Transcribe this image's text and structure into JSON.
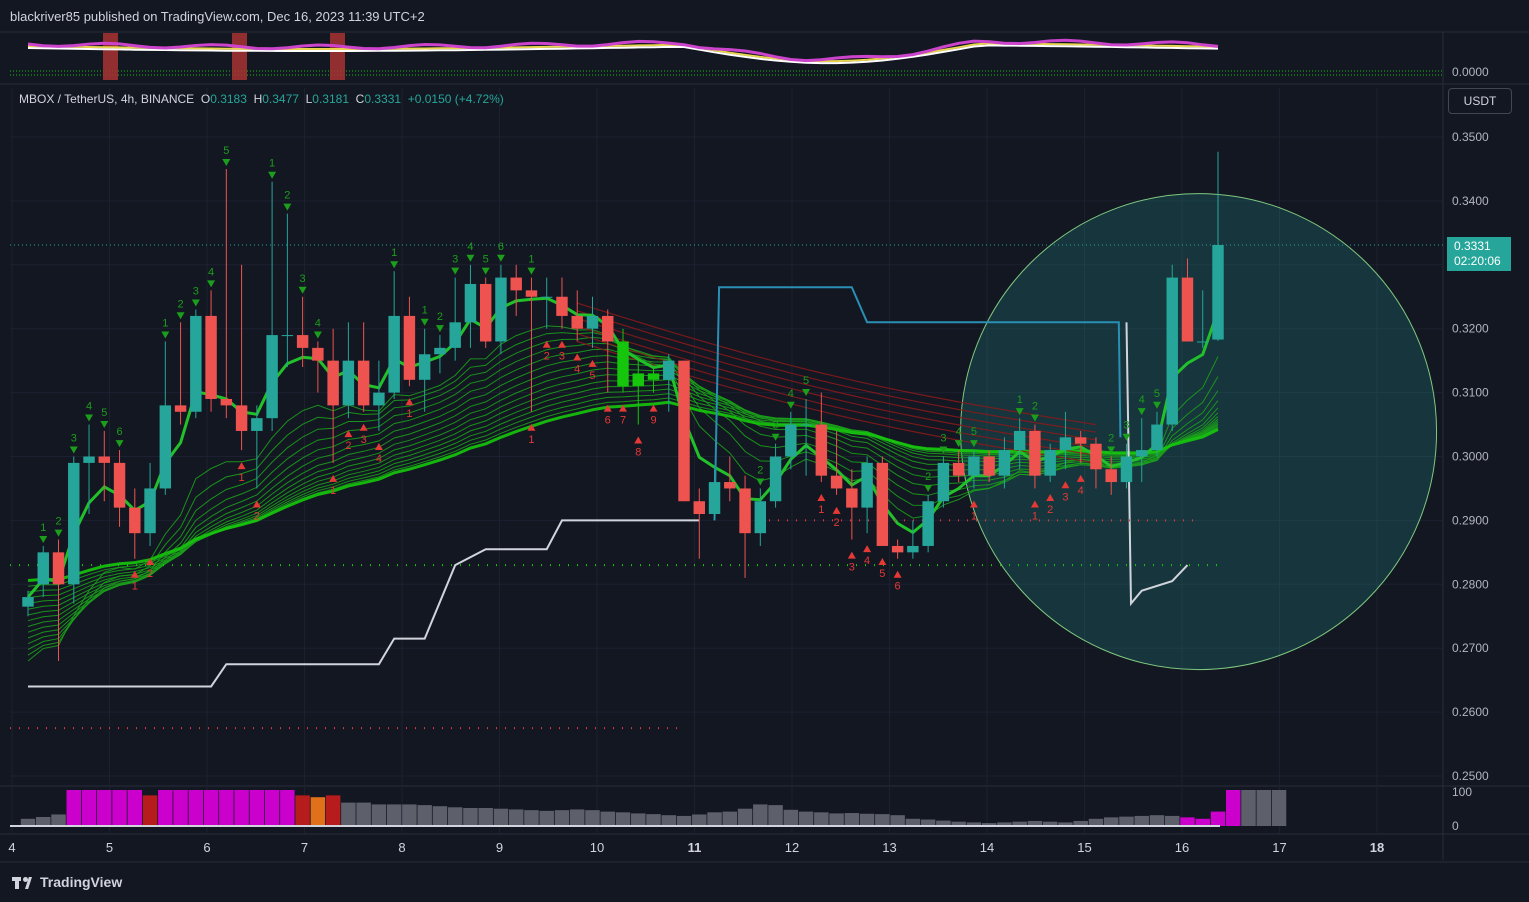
{
  "header": {
    "publisher": "blackriver85 published on TradingView.com, Dec 16, 2023 11:39 UTC+2"
  },
  "legend": {
    "symbol": "MBOX / TetherUS, 4h, BINANCE",
    "o_label": "O",
    "o": "0.3183",
    "h_label": "H",
    "h": "0.3477",
    "l_label": "L",
    "l": "0.3181",
    "c_label": "C",
    "c": "0.3331",
    "change": "+0.0150 (+4.72%)"
  },
  "currency_button": "USDT",
  "last_price": {
    "value": "0.3331",
    "countdown": "02:20:06"
  },
  "footer": {
    "brand": "TradingView"
  },
  "colors": {
    "up": "#26a69a",
    "down": "#ef5350",
    "ribbon_green": "#16c60c",
    "ribbon_red": "#b71c1c",
    "magenta": "#cc00cc",
    "bg": "#131722"
  },
  "chart_data": {
    "type": "candlestick",
    "timeframe": "4h",
    "y_axis_ticks": [
      "0.3500",
      "0.3400",
      "0.3300",
      "0.3200",
      "0.3100",
      "0.3000",
      "0.2900",
      "0.2800",
      "0.2700",
      "0.2600",
      "0.2500"
    ],
    "ylim": [
      0.2475,
      0.355
    ],
    "top_panel_tick": "0.0000",
    "bottom_panel_ticks": [
      "100",
      "0"
    ],
    "x_axis_ticks": [
      {
        "label": "4",
        "day": 4
      },
      {
        "label": "5",
        "day": 5
      },
      {
        "label": "6",
        "day": 6
      },
      {
        "label": "7",
        "day": 7
      },
      {
        "label": "8",
        "day": 8
      },
      {
        "label": "9",
        "day": 9
      },
      {
        "label": "10",
        "day": 10
      },
      {
        "label": "11",
        "day": 11
      },
      {
        "label": "12",
        "day": 12
      },
      {
        "label": "13",
        "day": 13
      },
      {
        "label": "14",
        "day": 14
      },
      {
        "label": "15",
        "day": 15
      },
      {
        "label": "16",
        "day": 16
      },
      {
        "label": "17",
        "day": 17
      },
      {
        "label": "18",
        "day": 18
      }
    ],
    "x_domain": [
      4,
      18.6
    ],
    "candles": [
      [
        0.2765,
        0.279,
        0.275,
        0.278
      ],
      [
        0.28,
        0.286,
        0.278,
        0.285
      ],
      [
        0.285,
        0.287,
        0.268,
        0.28
      ],
      [
        0.28,
        0.3,
        0.277,
        0.299
      ],
      [
        0.299,
        0.305,
        0.291,
        0.3
      ],
      [
        0.3,
        0.304,
        0.293,
        0.299
      ],
      [
        0.299,
        0.301,
        0.289,
        0.292
      ],
      [
        0.292,
        0.295,
        0.284,
        0.288
      ],
      [
        0.288,
        0.299,
        0.286,
        0.295
      ],
      [
        0.295,
        0.318,
        0.294,
        0.308
      ],
      [
        0.308,
        0.321,
        0.305,
        0.307
      ],
      [
        0.307,
        0.323,
        0.306,
        0.322
      ],
      [
        0.322,
        0.326,
        0.307,
        0.309
      ],
      [
        0.309,
        0.345,
        0.306,
        0.308
      ],
      [
        0.308,
        0.33,
        0.301,
        0.304
      ],
      [
        0.304,
        0.308,
        0.295,
        0.306
      ],
      [
        0.306,
        0.343,
        0.304,
        0.319
      ],
      [
        0.319,
        0.338,
        0.314,
        0.319
      ],
      [
        0.319,
        0.325,
        0.314,
        0.317
      ],
      [
        0.317,
        0.318,
        0.31,
        0.315
      ],
      [
        0.315,
        0.32,
        0.299,
        0.308
      ],
      [
        0.308,
        0.321,
        0.306,
        0.315
      ],
      [
        0.315,
        0.321,
        0.307,
        0.308
      ],
      [
        0.308,
        0.315,
        0.304,
        0.31
      ],
      [
        0.31,
        0.329,
        0.309,
        0.322
      ],
      [
        0.322,
        0.325,
        0.311,
        0.312
      ],
      [
        0.312,
        0.32,
        0.307,
        0.316
      ],
      [
        0.316,
        0.319,
        0.313,
        0.317
      ],
      [
        0.317,
        0.328,
        0.315,
        0.321
      ],
      [
        0.321,
        0.33,
        0.317,
        0.327
      ],
      [
        0.327,
        0.328,
        0.317,
        0.318
      ],
      [
        0.318,
        0.33,
        0.316,
        0.328
      ],
      [
        0.328,
        0.33,
        0.322,
        0.326
      ],
      [
        0.326,
        0.328,
        0.307,
        0.325
      ],
      [
        0.325,
        0.328,
        0.32,
        0.325
      ],
      [
        0.325,
        0.328,
        0.32,
        0.322
      ],
      [
        0.322,
        0.326,
        0.318,
        0.32
      ],
      [
        0.32,
        0.325,
        0.317,
        0.322
      ],
      [
        0.322,
        0.323,
        0.31,
        0.318
      ],
      [
        0.318,
        0.32,
        0.31,
        0.311
      ],
      [
        0.311,
        0.315,
        0.305,
        0.313
      ],
      [
        0.313,
        0.314,
        0.31,
        0.312
      ],
      [
        0.312,
        0.316,
        0.307,
        0.315
      ],
      [
        0.315,
        0.315,
        0.293,
        0.293
      ],
      [
        0.293,
        0.295,
        0.284,
        0.291
      ],
      [
        0.291,
        0.298,
        0.29,
        0.296
      ],
      [
        0.296,
        0.3,
        0.293,
        0.295
      ],
      [
        0.295,
        0.297,
        0.281,
        0.288
      ],
      [
        0.288,
        0.295,
        0.286,
        0.293
      ],
      [
        0.293,
        0.302,
        0.292,
        0.3
      ],
      [
        0.3,
        0.307,
        0.298,
        0.305
      ],
      [
        0.305,
        0.309,
        0.297,
        0.305
      ],
      [
        0.305,
        0.31,
        0.296,
        0.297
      ],
      [
        0.297,
        0.304,
        0.294,
        0.295
      ],
      [
        0.295,
        0.298,
        0.287,
        0.292
      ],
      [
        0.292,
        0.3,
        0.288,
        0.299
      ],
      [
        0.299,
        0.3,
        0.286,
        0.286
      ],
      [
        0.286,
        0.287,
        0.284,
        0.285
      ],
      [
        0.285,
        0.29,
        0.284,
        0.286
      ],
      [
        0.286,
        0.294,
        0.285,
        0.293
      ],
      [
        0.293,
        0.3,
        0.292,
        0.299
      ],
      [
        0.299,
        0.301,
        0.296,
        0.297
      ],
      [
        0.297,
        0.301,
        0.295,
        0.3
      ],
      [
        0.3,
        0.301,
        0.296,
        0.297
      ],
      [
        0.297,
        0.303,
        0.295,
        0.301
      ],
      [
        0.301,
        0.306,
        0.298,
        0.304
      ],
      [
        0.304,
        0.305,
        0.295,
        0.297
      ],
      [
        0.297,
        0.302,
        0.296,
        0.301
      ],
      [
        0.301,
        0.307,
        0.298,
        0.303
      ],
      [
        0.303,
        0.304,
        0.299,
        0.302
      ],
      [
        0.302,
        0.303,
        0.295,
        0.298
      ],
      [
        0.298,
        0.3,
        0.294,
        0.296
      ],
      [
        0.296,
        0.302,
        0.295,
        0.3
      ],
      [
        0.3,
        0.306,
        0.296,
        0.301
      ],
      [
        0.301,
        0.307,
        0.3,
        0.305
      ],
      [
        0.305,
        0.33,
        0.304,
        0.328
      ],
      [
        0.328,
        0.331,
        0.318,
        0.318
      ],
      [
        0.318,
        0.326,
        0.317,
        0.318
      ],
      [
        0.3183,
        0.3477,
        0.3181,
        0.3331
      ]
    ],
    "td_sell_marks": [
      {
        "i": 1,
        "n": "1"
      },
      {
        "i": 2,
        "n": "2"
      },
      {
        "i": 3,
        "n": "3"
      },
      {
        "i": 4,
        "n": "4"
      },
      {
        "i": 5,
        "n": "5"
      },
      {
        "i": 6,
        "n": "6"
      },
      {
        "i": 9,
        "n": "1"
      },
      {
        "i": 10,
        "n": "2"
      },
      {
        "i": 11,
        "n": "3"
      },
      {
        "i": 12,
        "n": "4"
      },
      {
        "i": 13,
        "n": "5"
      },
      {
        "i": 16,
        "n": "1"
      },
      {
        "i": 17,
        "n": "2"
      },
      {
        "i": 18,
        "n": "3"
      },
      {
        "i": 19,
        "n": "4"
      },
      {
        "i": 24,
        "n": "1"
      },
      {
        "i": 26,
        "n": "1"
      },
      {
        "i": 27,
        "n": "2"
      },
      {
        "i": 28,
        "n": "3"
      },
      {
        "i": 29,
        "n": "4"
      },
      {
        "i": 30,
        "n": "5"
      },
      {
        "i": 31,
        "n": "6"
      },
      {
        "i": 33,
        "n": "1"
      },
      {
        "i": 48,
        "n": "2"
      },
      {
        "i": 49,
        "n": "3"
      },
      {
        "i": 50,
        "n": "4"
      },
      {
        "i": 51,
        "n": "5"
      },
      {
        "i": 59,
        "n": "2"
      },
      {
        "i": 60,
        "n": "3"
      },
      {
        "i": 61,
        "n": "4"
      },
      {
        "i": 62,
        "n": "5"
      },
      {
        "i": 65,
        "n": "1"
      },
      {
        "i": 66,
        "n": "2"
      },
      {
        "i": 71,
        "n": "2"
      },
      {
        "i": 72,
        "n": "3"
      },
      {
        "i": 73,
        "n": "4"
      },
      {
        "i": 74,
        "n": "5"
      }
    ],
    "td_buy_marks": [
      {
        "i": 7,
        "n": "1"
      },
      {
        "i": 8,
        "n": "2"
      },
      {
        "i": 14,
        "n": "1"
      },
      {
        "i": 15,
        "n": "2"
      },
      {
        "i": 20,
        "n": "1"
      },
      {
        "i": 21,
        "n": "2"
      },
      {
        "i": 22,
        "n": "3"
      },
      {
        "i": 23,
        "n": "4"
      },
      {
        "i": 25,
        "n": "1"
      },
      {
        "i": 33,
        "n": "1"
      },
      {
        "i": 34,
        "n": "2"
      },
      {
        "i": 35,
        "n": "3"
      },
      {
        "i": 36,
        "n": "4"
      },
      {
        "i": 37,
        "n": "5"
      },
      {
        "i": 38,
        "n": "6"
      },
      {
        "i": 39,
        "n": "7"
      },
      {
        "i": 40,
        "n": "8"
      },
      {
        "i": 41,
        "n": "9"
      },
      {
        "i": 52,
        "n": "1"
      },
      {
        "i": 53,
        "n": "2"
      },
      {
        "i": 54,
        "n": "3"
      },
      {
        "i": 55,
        "n": "4"
      },
      {
        "i": 56,
        "n": "5"
      },
      {
        "i": 57,
        "n": "6"
      },
      {
        "i": 62,
        "n": "1"
      },
      {
        "i": 66,
        "n": "1"
      },
      {
        "i": 67,
        "n": "2"
      },
      {
        "i": 68,
        "n": "3"
      },
      {
        "i": 69,
        "n": "4"
      }
    ],
    "histogram_colors": [
      "gray",
      "gray",
      "gray",
      "magenta",
      "magenta",
      "magenta",
      "magenta",
      "magenta",
      "darkred",
      "magenta",
      "magenta",
      "magenta",
      "magenta",
      "magenta",
      "magenta",
      "magenta",
      "magenta",
      "magenta",
      "red",
      "orange",
      "red",
      "gray",
      "gray",
      "gray",
      "gray",
      "gray",
      "gray",
      "gray",
      "gray",
      "gray",
      "gray",
      "gray",
      "gray",
      "gray",
      "gray",
      "gray",
      "gray",
      "gray",
      "gray",
      "gray",
      "gray",
      "gray",
      "gray",
      "gray",
      "gray",
      "gray",
      "gray",
      "gray",
      "gray",
      "gray",
      "gray",
      "gray",
      "gray",
      "gray",
      "gray",
      "gray",
      "gray",
      "gray",
      "gray",
      "gray",
      "gray",
      "gray",
      "gray",
      "gray",
      "gray",
      "gray",
      "gray",
      "gray",
      "gray",
      "gray",
      "gray",
      "gray",
      "gray",
      "gray",
      "gray",
      "gray",
      "magenta",
      "magenta",
      "magenta",
      "magenta"
    ],
    "histogram_values": [
      20,
      25,
      32,
      100,
      100,
      100,
      100,
      100,
      85,
      100,
      100,
      100,
      100,
      100,
      100,
      100,
      100,
      100,
      85,
      80,
      85,
      65,
      65,
      60,
      60,
      60,
      58,
      55,
      52,
      50,
      50,
      48,
      46,
      44,
      42,
      44,
      46,
      44,
      40,
      38,
      35,
      33,
      30,
      28,
      32,
      38,
      40,
      48,
      60,
      58,
      45,
      40,
      38,
      35,
      36,
      34,
      33,
      30,
      20,
      18,
      15,
      12,
      10,
      8,
      10,
      12,
      14,
      12,
      10,
      14,
      20,
      24,
      26,
      28,
      30,
      28,
      24,
      20,
      40,
      100,
      100,
      100,
      100
    ],
    "circle": {
      "center_day": 16.17,
      "center_price": 0.3039,
      "note": ""
    }
  }
}
